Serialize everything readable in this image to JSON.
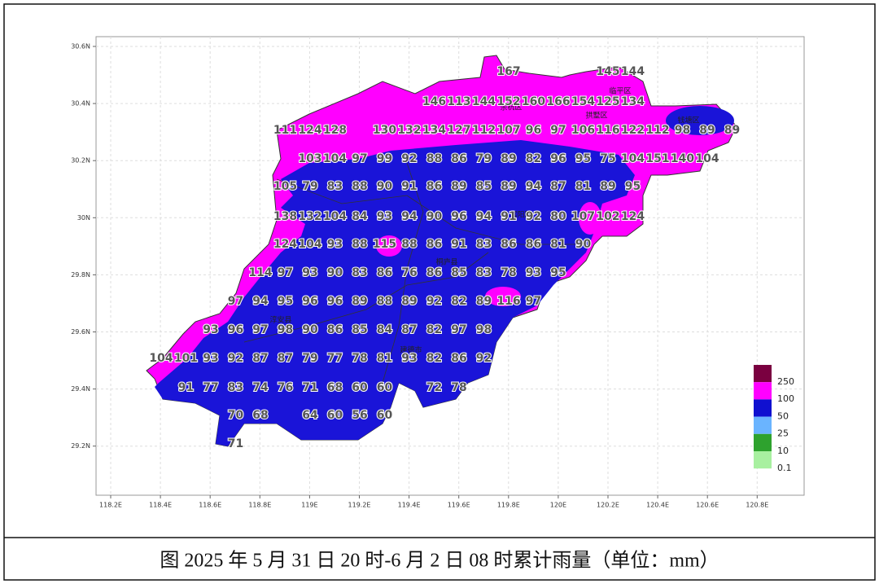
{
  "map": {
    "x_axis": [
      "118.2E",
      "118.4E",
      "118.6E",
      "118.8E",
      "119E",
      "119.2E",
      "119.4E",
      "119.6E",
      "119.8E",
      "120E",
      "120.2E",
      "120.4E",
      "120.6E",
      "120.8E"
    ],
    "y_axis": [
      "30.6N",
      "30.4N",
      "30.2N",
      "30N",
      "29.8N",
      "29.6N",
      "29.4N",
      "29.2N"
    ],
    "stations": [
      [
        "167",
        "145",
        "144"
      ],
      [
        "146",
        "113",
        "144",
        "152",
        "160",
        "166",
        "154",
        "125",
        "134"
      ],
      [
        "111",
        "124",
        "128",
        "130",
        "132",
        "134",
        "127",
        "112",
        "107",
        "96",
        "97",
        "106",
        "116",
        "122",
        "112",
        "98",
        "89",
        "89"
      ],
      [
        "103",
        "104",
        "97",
        "99",
        "92",
        "88",
        "86",
        "79",
        "89",
        "82",
        "96",
        "95",
        "75",
        "104",
        "151",
        "140",
        "104"
      ],
      [
        "105",
        "79",
        "83",
        "88",
        "90",
        "91",
        "86",
        "89",
        "85",
        "89",
        "94",
        "87",
        "81",
        "89",
        "95"
      ],
      [
        "138",
        "132",
        "104",
        "84",
        "93",
        "94",
        "90",
        "96",
        "94",
        "91",
        "92",
        "80",
        "107",
        "102",
        "124"
      ],
      [
        "124",
        "104",
        "93",
        "88",
        "115",
        "88",
        "86",
        "91",
        "83",
        "86",
        "86",
        "81",
        "90"
      ],
      [
        "114",
        "97",
        "93",
        "90",
        "83",
        "86",
        "76",
        "86",
        "85",
        "83",
        "78",
        "93",
        "95"
      ],
      [
        "97",
        "94",
        "95",
        "96",
        "96",
        "89",
        "88",
        "89",
        "92",
        "82",
        "89",
        "116",
        "97"
      ],
      [
        "93",
        "96",
        "97",
        "98",
        "90",
        "86",
        "85",
        "84",
        "87",
        "82",
        "97",
        "98"
      ],
      [
        "104",
        "101",
        "93",
        "92",
        "87",
        "87",
        "79",
        "77",
        "78",
        "81",
        "93",
        "82",
        "86",
        "92"
      ],
      [
        "91",
        "77",
        "83",
        "74",
        "76",
        "71",
        "68",
        "60",
        "60",
        "72",
        "78"
      ],
      [
        "70",
        "68",
        "64",
        "60",
        "56",
        "60"
      ],
      [
        "71"
      ]
    ],
    "districts": [
      "临平区",
      "余杭区",
      "拱墅区",
      "钱塘区",
      "富阳区",
      "桐庐县",
      "淳安县",
      "建德市"
    ],
    "legend": [
      {
        "label": "250",
        "color": "#7a0040"
      },
      {
        "label": "100",
        "color": "#ff00ff"
      },
      {
        "label": "50",
        "color": "#1010d0"
      },
      {
        "label": "25",
        "color": "#6ab4ff"
      },
      {
        "label": "10",
        "color": "#2ea22e"
      },
      {
        "label": "0.1",
        "color": "#a8f0a0"
      }
    ]
  },
  "caption": "图  2025 年 5 月 31 日 20 时-6 月 2 日 08 时累计雨量（单位：mm）"
}
